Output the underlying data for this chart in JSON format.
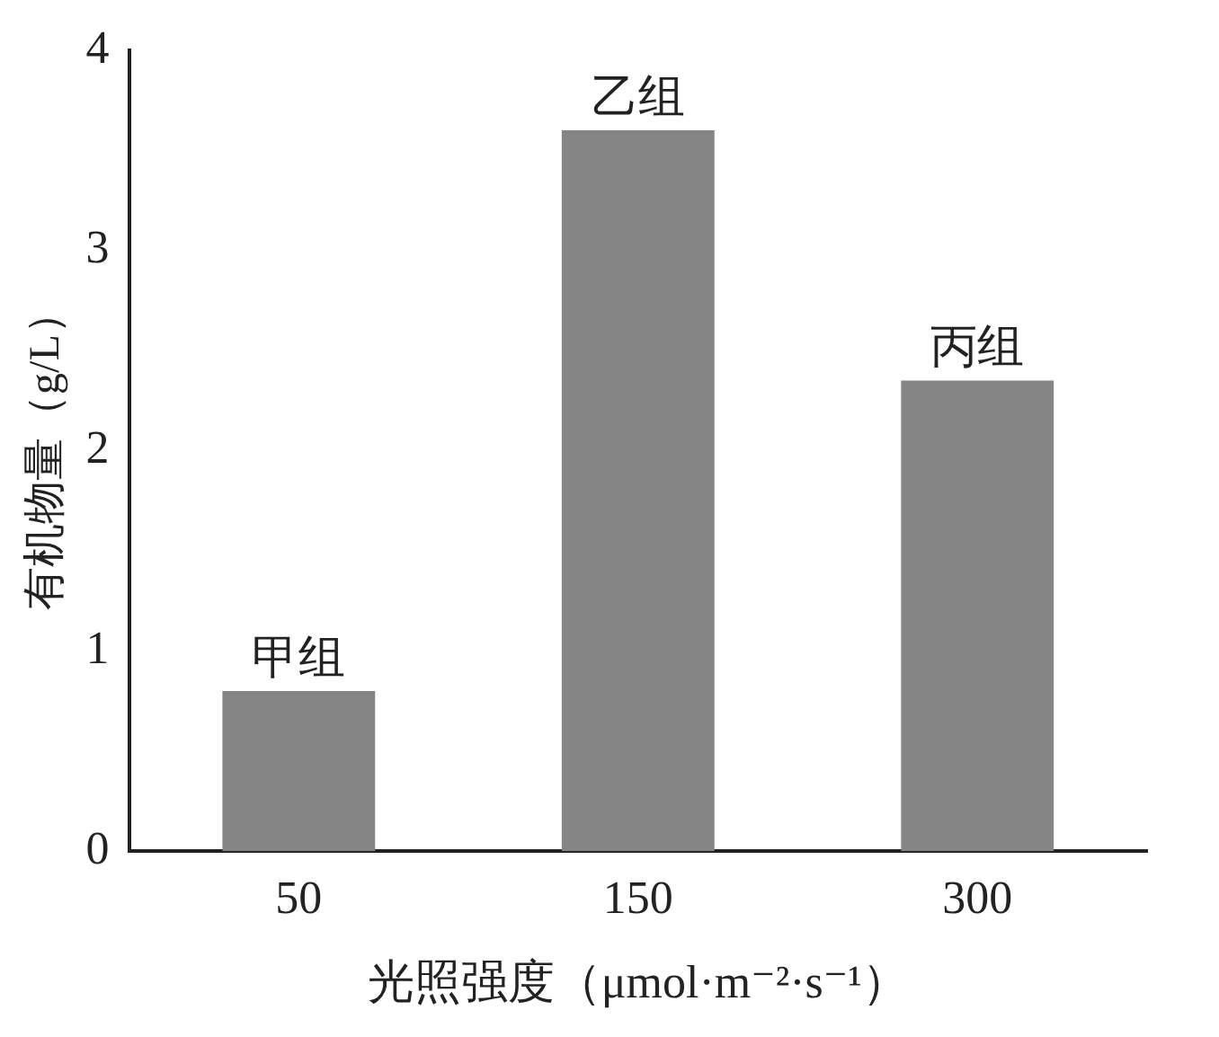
{
  "chart_data": {
    "type": "bar",
    "categories": [
      "50",
      "150",
      "300"
    ],
    "values": [
      0.8,
      3.6,
      2.35
    ],
    "color": "#858585",
    "ylim": [
      0,
      4
    ],
    "yticks": [
      0,
      1,
      2,
      3,
      4
    ],
    "grid": false,
    "legend": false,
    "xlabel": "光照强度（μmol·m⁻²·s⁻¹）",
    "ylabel": "有机物量（g/L）",
    "annotations": [
      {
        "text": "甲组",
        "x": "50",
        "y": 0.8
      },
      {
        "text": "乙组",
        "x": "150",
        "y": 3.6
      },
      {
        "text": "丙组",
        "x": "300",
        "y": 2.35
      }
    ]
  }
}
